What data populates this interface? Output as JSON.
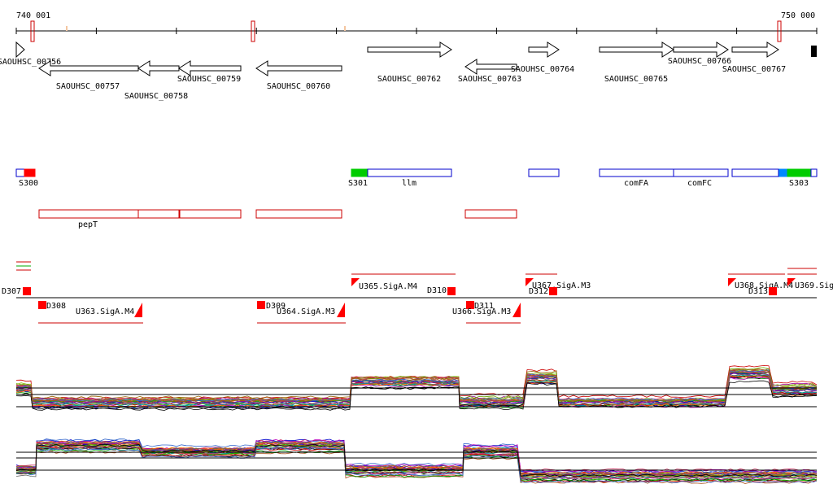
{
  "ruler": {
    "start": "740 001",
    "end": "750 000"
  },
  "genes": [
    "SAOUHSC_00756",
    "SAOUHSC_00757",
    "SAOUHSC_00758",
    "SAOUHSC_00759",
    "SAOUHSC_00760",
    "SAOUHSC_00762",
    "SAOUHSC_00763",
    "SAOUHSC_00764",
    "SAOUHSC_00765",
    "SAOUHSC_00766",
    "SAOUHSC_00767"
  ],
  "annotations": [
    "S300",
    "S301",
    "llm",
    "comFA",
    "comFC",
    "S303"
  ],
  "operons": [
    "pepT"
  ],
  "features": [
    "D307",
    "D308",
    "U363.SigA.M4",
    "D309",
    "U364.SigA.M3",
    "U365.SigA.M4",
    "D310",
    "D311",
    "U366.SigA.M3",
    "U367.SigA.M3",
    "D312",
    "U368.SigA.M4",
    "D313",
    "U369.Sig"
  ]
}
